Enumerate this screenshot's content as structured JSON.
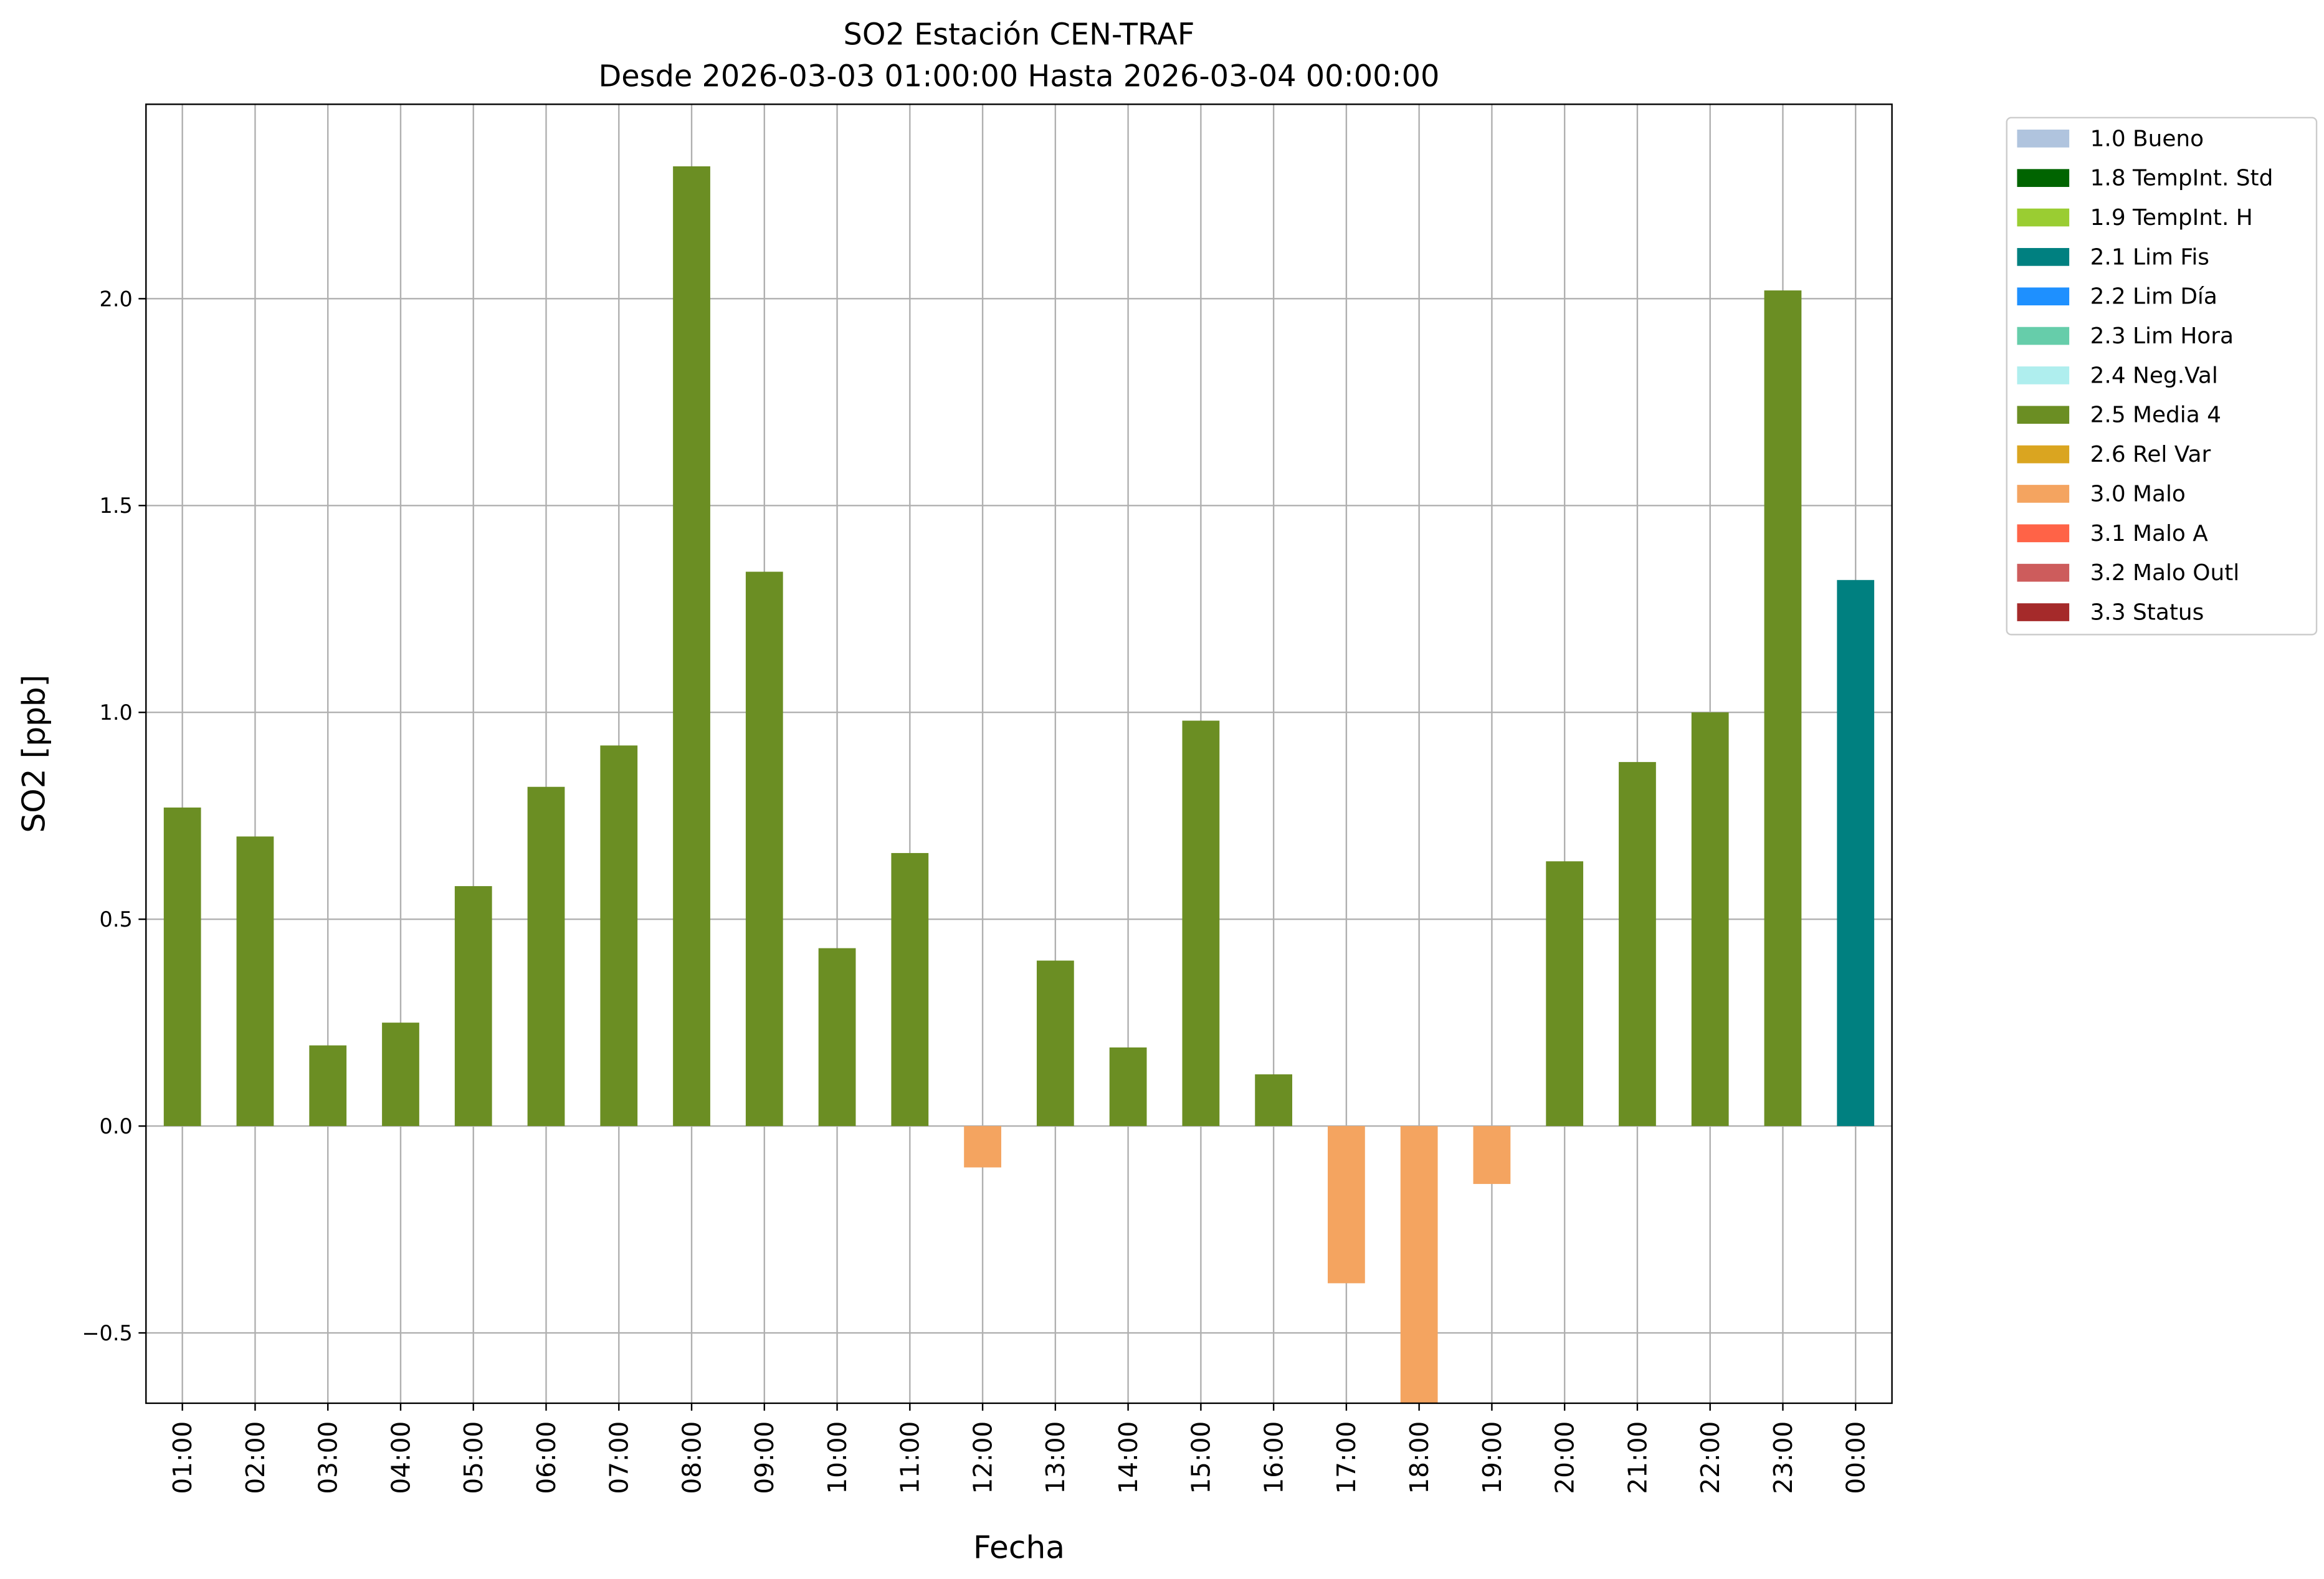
{
  "chart_data": {
    "type": "bar",
    "title": "SO2 Estación CEN-TRAF",
    "subtitle": "Desde 2026-03-03 01:00:00 Hasta 2026-03-04 00:00:00",
    "xlabel": "Fecha",
    "ylabel": "SO2 [ppb]",
    "ylim": [
      -0.67,
      2.47
    ],
    "yticks": [
      -0.5,
      0.0,
      0.5,
      1.0,
      1.5,
      2.0
    ],
    "ytick_labels": [
      "−0.5",
      "0.0",
      "0.5",
      "1.0",
      "1.5",
      "2.0"
    ],
    "grid": true,
    "legend_position": "outside-top-right",
    "categories": [
      "01:00",
      "02:00",
      "03:00",
      "04:00",
      "05:00",
      "06:00",
      "07:00",
      "08:00",
      "09:00",
      "10:00",
      "11:00",
      "12:00",
      "13:00",
      "14:00",
      "15:00",
      "16:00",
      "17:00",
      "18:00",
      "19:00",
      "20:00",
      "21:00",
      "22:00",
      "23:00",
      "00:00"
    ],
    "values": [
      0.77,
      0.7,
      0.195,
      0.25,
      0.58,
      0.82,
      0.92,
      2.32,
      1.34,
      0.43,
      0.66,
      -0.1,
      0.4,
      0.19,
      0.98,
      0.125,
      -0.38,
      -0.7,
      -0.14,
      0.64,
      0.88,
      1.0,
      2.02,
      1.32
    ],
    "flags": [
      "2.5 Media 4",
      "2.5 Media 4",
      "2.5 Media 4",
      "2.5 Media 4",
      "2.5 Media 4",
      "2.5 Media 4",
      "2.5 Media 4",
      "2.5 Media 4",
      "2.5 Media 4",
      "2.5 Media 4",
      "2.5 Media 4",
      "3.0 Malo",
      "2.5 Media 4",
      "2.5 Media 4",
      "2.5 Media 4",
      "2.5 Media 4",
      "3.0 Malo",
      "3.0 Malo",
      "3.0 Malo",
      "2.5 Media 4",
      "2.5 Media 4",
      "2.5 Media 4",
      "2.5 Media 4",
      "2.1 Lim Fis"
    ],
    "legend": [
      {
        "label": "1.0 Bueno",
        "color": "#b0c4de"
      },
      {
        "label": "1.8 TempInt. Std",
        "color": "#006400"
      },
      {
        "label": "1.9 TempInt. H",
        "color": "#9acd32"
      },
      {
        "label": "2.1 Lim Fis",
        "color": "#008080"
      },
      {
        "label": "2.2 Lim Día",
        "color": "#1e90ff"
      },
      {
        "label": "2.3 Lim Hora",
        "color": "#66cdaa"
      },
      {
        "label": "2.4 Neg.Val",
        "color": "#afeeee"
      },
      {
        "label": "2.5 Media 4",
        "color": "#6b8e23"
      },
      {
        "label": "2.6 Rel Var",
        "color": "#daa520"
      },
      {
        "label": "3.0 Malo",
        "color": "#f4a460"
      },
      {
        "label": "3.1 Malo A",
        "color": "#ff6347"
      },
      {
        "label": "3.2 Malo Outl",
        "color": "#cd5c5c"
      },
      {
        "label": "3.3 Status",
        "color": "#a52a2a"
      }
    ]
  }
}
